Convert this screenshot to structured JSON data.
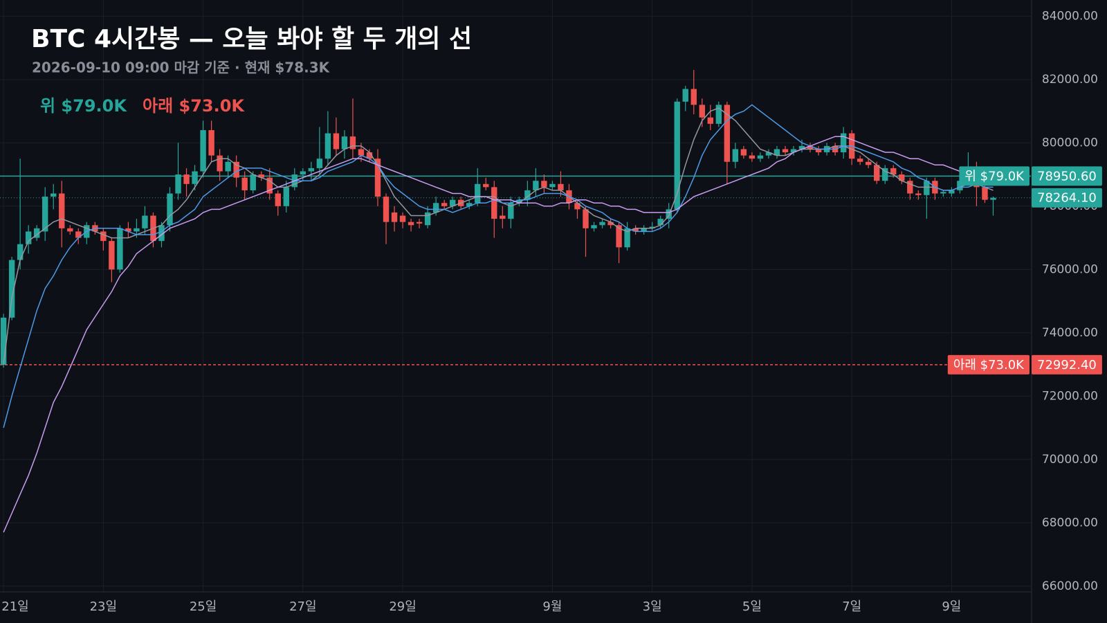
{
  "chart_data": {
    "type": "candlestick",
    "title": "BTC 4시간봉 — 오늘 봐야 할 두 개의 선",
    "subtitle": "2026-09-10 09:00 마감 기준 · 현재 $78.3K",
    "categories": [
      "21일",
      null,
      null,
      null,
      null,
      null,
      null,
      null,
      null,
      null,
      null,
      null,
      "23일",
      null,
      null,
      null,
      null,
      null,
      null,
      null,
      null,
      null,
      null,
      null,
      "25일",
      null,
      null,
      null,
      null,
      null,
      null,
      null,
      null,
      null,
      null,
      null,
      "27일",
      null,
      null,
      null,
      null,
      null,
      null,
      null,
      null,
      null,
      null,
      null,
      "29일",
      null,
      null,
      null,
      null,
      null,
      null,
      null,
      null,
      null,
      null,
      null,
      null,
      null,
      null,
      null,
      null,
      null,
      "9월",
      null,
      null,
      null,
      null,
      null,
      null,
      null,
      null,
      null,
      null,
      null,
      "3일",
      null,
      null,
      null,
      null,
      null,
      null,
      null,
      null,
      null,
      null,
      null,
      "5일",
      null,
      null,
      null,
      null,
      null,
      null,
      null,
      null,
      null,
      null,
      null,
      "7일",
      null,
      null,
      null,
      null,
      null,
      null,
      null,
      null,
      null,
      null,
      null,
      "9일",
      null,
      null,
      null,
      null,
      null
    ],
    "open": [
      72990,
      74480,
      76300,
      76800,
      77000,
      77200,
      78300,
      78400,
      77300,
      77200,
      77000,
      77400,
      77200,
      76900,
      76000,
      77300,
      77200,
      77300,
      77700,
      76900,
      77400,
      78400,
      79000,
      78700,
      79100,
      80400,
      79600,
      79100,
      79400,
      78900,
      78500,
      79000,
      78900,
      78400,
      78000,
      78600,
      79000,
      79100,
      79200,
      79500,
      80300,
      79800,
      80200,
      79800,
      79700,
      79500,
      78300,
      77800,
      77700,
      77500,
      77500,
      77400,
      77800,
      78100,
      78000,
      78200,
      78000,
      78100,
      78700,
      78600,
      77700,
      77600,
      78100,
      78200,
      78500,
      78800,
      78600,
      78700,
      78500,
      78100,
      77900,
      77300,
      77400,
      77500,
      77400,
      76700,
      77300,
      77200,
      77300,
      77400,
      77600,
      77900,
      81300,
      81700,
      81200,
      80800,
      80600,
      81200,
      79400,
      79800,
      79600,
      79500,
      79600,
      79600,
      79800,
      79700,
      79800,
      79900,
      79800,
      79700,
      79900,
      79700,
      80300,
      79500,
      79400,
      79300,
      78800,
      79200,
      79000,
      78800,
      78400,
      78350,
      78800,
      78400,
      78400,
      78500,
      78800,
      79000,
      78600,
      78200
    ],
    "high": [
      74600,
      76400,
      79500,
      77400,
      77400,
      78600,
      78700,
      78800,
      77400,
      77300,
      77500,
      77500,
      77300,
      77000,
      77400,
      77500,
      77600,
      78000,
      77800,
      77500,
      78600,
      80000,
      79200,
      79300,
      80700,
      80700,
      79800,
      79600,
      79600,
      79100,
      79100,
      79100,
      79200,
      78500,
      78800,
      79200,
      79200,
      79400,
      80500,
      81000,
      80800,
      80400,
      81400,
      80000,
      79800,
      79800,
      78400,
      78000,
      77800,
      77600,
      77600,
      78000,
      78300,
      78200,
      78300,
      78300,
      78200,
      79200,
      78900,
      78800,
      78000,
      78300,
      78300,
      78800,
      79200,
      79000,
      78800,
      79100,
      78700,
      78200,
      78000,
      77500,
      77600,
      77600,
      77500,
      77500,
      77400,
      77400,
      77500,
      77700,
      78100,
      81400,
      81800,
      82300,
      81400,
      81200,
      81300,
      81300,
      80000,
      79900,
      79700,
      79700,
      79800,
      79900,
      79900,
      79900,
      80100,
      80000,
      79900,
      80000,
      80000,
      80500,
      80400,
      79600,
      79500,
      79400,
      79300,
      79300,
      79100,
      78900,
      78500,
      78900,
      78900,
      78500,
      78600,
      78900,
      79700,
      79400,
      78700,
      78300
    ],
    "low": [
      72900,
      74400,
      76000,
      76500,
      76900,
      76900,
      77900,
      76700,
      77100,
      76800,
      76800,
      77100,
      76600,
      75600,
      75900,
      77000,
      77000,
      77100,
      76700,
      76700,
      77200,
      78200,
      78300,
      78500,
      78900,
      79400,
      78800,
      78900,
      78600,
      78200,
      78400,
      78800,
      78200,
      77700,
      77800,
      78500,
      78800,
      78800,
      79000,
      79300,
      79600,
      79500,
      79500,
      79400,
      79400,
      78000,
      76800,
      77200,
      77300,
      77200,
      77300,
      77300,
      77700,
      77900,
      77900,
      77900,
      77900,
      78000,
      78500,
      77000,
      77300,
      77300,
      78000,
      78000,
      78300,
      78400,
      78500,
      78300,
      77900,
      77600,
      76400,
      77200,
      77300,
      77300,
      76200,
      76600,
      77100,
      77100,
      77200,
      77300,
      77300,
      77800,
      81000,
      80900,
      80500,
      80400,
      80500,
      78700,
      79200,
      79500,
      79400,
      79400,
      79500,
      79500,
      79600,
      79600,
      79700,
      79700,
      79600,
      79600,
      79600,
      79500,
      79300,
      79300,
      79200,
      78700,
      78700,
      78900,
      78700,
      78200,
      78200,
      77600,
      78200,
      78300,
      78300,
      78400,
      78700,
      78000,
      78100,
      77700
    ],
    "close": [
      74480,
      76300,
      76800,
      77200,
      77300,
      78300,
      78400,
      77300,
      77200,
      77000,
      77400,
      77200,
      76900,
      76000,
      77300,
      77200,
      77300,
      77700,
      76900,
      77400,
      78400,
      79000,
      78700,
      79100,
      80400,
      79600,
      79100,
      79400,
      78900,
      78500,
      79000,
      78900,
      78400,
      78000,
      78600,
      79000,
      79100,
      79200,
      79500,
      80300,
      79800,
      80200,
      79800,
      79600,
      79500,
      78300,
      77500,
      77500,
      77500,
      77400,
      77450,
      77800,
      78100,
      78000,
      78200,
      78000,
      78100,
      78700,
      78600,
      77600,
      77600,
      78100,
      78200,
      78500,
      78800,
      78600,
      78700,
      78500,
      78100,
      77900,
      77300,
      77400,
      77500,
      77400,
      76700,
      77300,
      77200,
      77300,
      77350,
      77600,
      77900,
      81300,
      81700,
      81200,
      80800,
      80600,
      81200,
      79400,
      79800,
      79600,
      79500,
      79600,
      79700,
      79800,
      79700,
      79800,
      79900,
      79800,
      79700,
      79900,
      79700,
      80300,
      79500,
      79400,
      79300,
      78800,
      79200,
      79000,
      78800,
      78400,
      78350,
      78800,
      78400,
      78450,
      78500,
      78800,
      79000,
      78600,
      78200,
      78264.1
    ],
    "up_color": "#26a69a",
    "down_color": "#ef5350",
    "lines": [
      {
        "color": "#9598a1",
        "values": [
          73000,
          75100,
          76300,
          76900,
          77100,
          77300,
          77500,
          77600,
          77500,
          77400,
          77300,
          77200,
          77100,
          77000,
          77000,
          77000,
          77100,
          77200,
          77300,
          77400,
          77700,
          77900,
          78200,
          78600,
          79000,
          79400,
          79500,
          79500,
          79300,
          79200,
          79000,
          78900,
          78800,
          78600,
          78600,
          78700,
          78800,
          78800,
          79000,
          79300,
          79600,
          79800,
          79900,
          79900,
          79700,
          79300,
          78800,
          78300,
          78000,
          77700,
          77700,
          77700,
          77800,
          77900,
          78000,
          78100,
          78200,
          78300,
          78300,
          78300,
          78100,
          78000,
          78100,
          78300,
          78500,
          78600,
          78500,
          78500,
          78300,
          78100,
          77900,
          77700,
          77600,
          77500,
          77300,
          77200,
          77300,
          77300,
          77300,
          77400,
          77700,
          78400,
          79300,
          80100,
          80700,
          81000,
          81100,
          80900,
          80700,
          80400,
          80100,
          79800,
          79700,
          79600,
          79600,
          79700,
          79800,
          79800,
          79800,
          79800,
          79900,
          79900,
          79800,
          79700,
          79500,
          79300,
          79100,
          79000,
          78800,
          78700,
          78600,
          78600,
          78600,
          78500,
          78500,
          78600,
          78700,
          78700,
          78600,
          78500
        ]
      },
      {
        "color": "#4d9be8",
        "values": [
          71000,
          72000,
          72900,
          73800,
          74700,
          75400,
          75800,
          76300,
          76700,
          77000,
          77200,
          77300,
          77300,
          77300,
          77300,
          77200,
          77100,
          77100,
          77100,
          77200,
          77400,
          77500,
          77700,
          77900,
          78300,
          78500,
          78700,
          78900,
          79100,
          79200,
          79200,
          79200,
          79100,
          79000,
          78900,
          78800,
          78800,
          78800,
          78900,
          79100,
          79200,
          79300,
          79400,
          79600,
          79500,
          79300,
          78900,
          78600,
          78400,
          78200,
          78000,
          77900,
          77900,
          77900,
          77800,
          77900,
          78000,
          78100,
          78100,
          78200,
          78100,
          78100,
          78200,
          78200,
          78300,
          78400,
          78400,
          78400,
          78300,
          78200,
          78000,
          77900,
          77800,
          77600,
          77500,
          77300,
          77200,
          77200,
          77200,
          77300,
          77500,
          77800,
          78300,
          78900,
          79600,
          80100,
          80400,
          80700,
          80900,
          81000,
          81200,
          81000,
          80800,
          80600,
          80400,
          80200,
          80000,
          79900,
          79800,
          79800,
          79800,
          79900,
          79900,
          79800,
          79700,
          79600,
          79500,
          79400,
          79200,
          79100,
          78900,
          78800,
          78600,
          78500,
          78500,
          78600,
          78600,
          78700,
          78600,
          78600
        ]
      },
      {
        "color": "#c99ef0",
        "values": [
          67700,
          68300,
          68900,
          69500,
          70200,
          71000,
          71800,
          72300,
          72900,
          73500,
          74100,
          74500,
          74900,
          75300,
          75800,
          76100,
          76500,
          76700,
          76900,
          77100,
          77300,
          77400,
          77500,
          77600,
          77800,
          77900,
          77900,
          78000,
          78100,
          78200,
          78300,
          78400,
          78500,
          78600,
          78700,
          78800,
          78900,
          79000,
          79100,
          79200,
          79300,
          79400,
          79500,
          79500,
          79400,
          79300,
          79200,
          79100,
          79000,
          78900,
          78800,
          78700,
          78600,
          78500,
          78400,
          78400,
          78300,
          78300,
          78300,
          78200,
          78200,
          78200,
          78100,
          78100,
          78100,
          78000,
          78000,
          78100,
          78100,
          78200,
          78200,
          78100,
          78100,
          78000,
          78000,
          77900,
          77900,
          77800,
          77800,
          77800,
          77800,
          77900,
          78100,
          78300,
          78400,
          78500,
          78600,
          78700,
          78800,
          78900,
          79000,
          79100,
          79200,
          79400,
          79500,
          79700,
          79800,
          79900,
          80000,
          80100,
          80200,
          80200,
          80100,
          80000,
          79900,
          79800,
          79700,
          79700,
          79600,
          79500,
          79500,
          79400,
          79300,
          79300,
          79200,
          79100,
          79100,
          79000,
          78900,
          78800
        ]
      }
    ],
    "levels": [
      {
        "name": "위 $79.0K",
        "value": 78950.6,
        "value_label": "78950.60",
        "color": "#26a69a",
        "dashed": false
      },
      {
        "name": "아래 $73.0K",
        "value": 72992.4,
        "value_label": "72992.40",
        "color": "#ef5350",
        "dashed": true
      }
    ],
    "last_price": {
      "value": 78264.1,
      "label": "78264.10",
      "color": "#26a69a"
    },
    "ylim": [
      65820,
      84510
    ],
    "yticks": [
      {
        "value": 66000,
        "label": "66000.00"
      },
      {
        "value": 68000,
        "label": "68000.00"
      },
      {
        "value": 70000,
        "label": "70000.00"
      },
      {
        "value": 72000,
        "label": "72000.00"
      },
      {
        "value": 74000,
        "label": "74000.00"
      },
      {
        "value": 76000,
        "label": "76000.00"
      },
      {
        "value": 78000,
        "label": "78000.00"
      },
      {
        "value": 80000,
        "label": "80000.00"
      },
      {
        "value": 82000,
        "label": "82000.00"
      },
      {
        "value": 84000,
        "label": "84000.00"
      }
    ],
    "grid": true
  }
}
